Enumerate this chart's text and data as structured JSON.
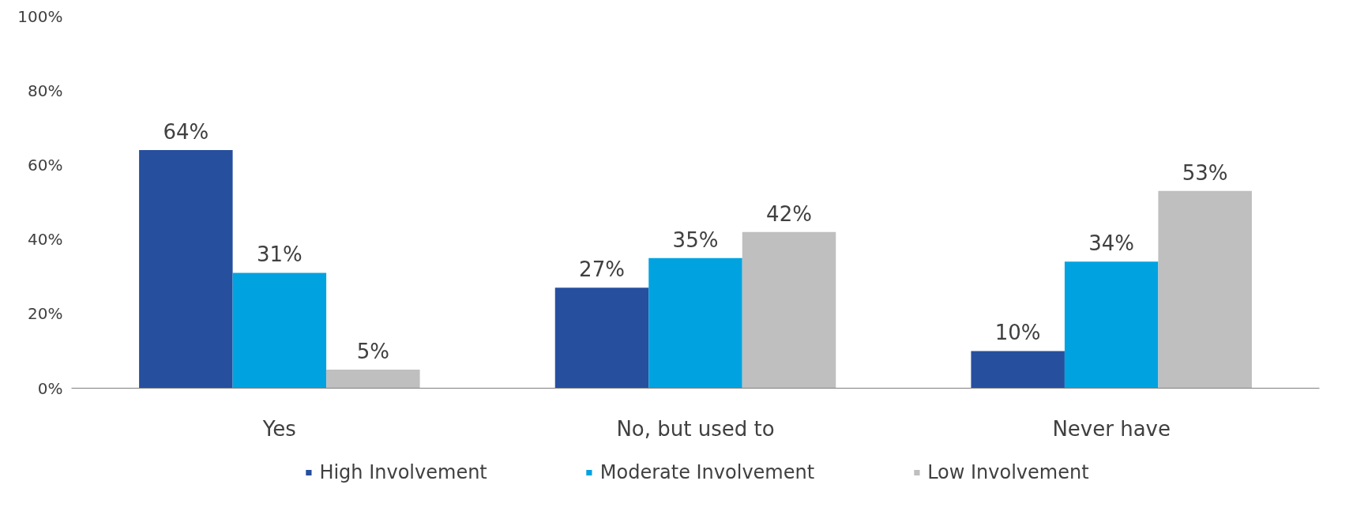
{
  "chart_data": {
    "type": "bar",
    "categories": [
      "Yes",
      "No, but used to",
      "Never have"
    ],
    "series": [
      {
        "name": "High Involvement",
        "color": "#264f9e",
        "values": [
          64,
          27,
          10
        ],
        "value_labels": [
          "64%",
          "27%",
          "10%"
        ]
      },
      {
        "name": "Moderate Involvement",
        "color": "#00a3e0",
        "values": [
          31,
          35,
          34
        ],
        "value_labels": [
          "31%",
          "35%",
          "34%"
        ]
      },
      {
        "name": "Low Involvement",
        "color": "#bfbfbf",
        "values": [
          5,
          42,
          53
        ],
        "value_labels": [
          "5%",
          "42%",
          "53%"
        ]
      }
    ],
    "ylim": [
      0,
      100
    ],
    "yticks": [
      {
        "value": 0,
        "label": "0%"
      },
      {
        "value": 20,
        "label": "20%"
      },
      {
        "value": 40,
        "label": "40%"
      },
      {
        "value": 60,
        "label": "60%"
      },
      {
        "value": 80,
        "label": "80%"
      },
      {
        "value": 100,
        "label": "100%"
      }
    ],
    "grid": false,
    "legend": "bottom"
  }
}
